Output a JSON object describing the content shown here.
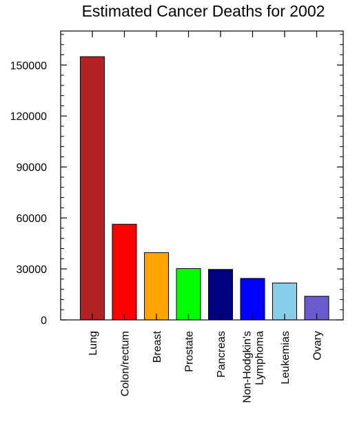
{
  "chart_data": {
    "type": "bar",
    "title": "Estimated Cancer Deaths for 2002",
    "xlabel": "",
    "ylabel": "",
    "ylim": [
      0,
      170000
    ],
    "yticks": [
      0,
      30000,
      60000,
      90000,
      120000,
      150000
    ],
    "ytick_labels": [
      "0",
      "30000",
      "60000",
      "90000",
      "120000",
      "150000"
    ],
    "categories": [
      [
        "Lung"
      ],
      [
        "Colon/rectum"
      ],
      [
        "Breast"
      ],
      [
        "Prostate"
      ],
      [
        "Pancreas"
      ],
      [
        "Non-Hodgkin's",
        "Lymphoma"
      ],
      [
        "Leukemias"
      ],
      [
        "Ovary"
      ]
    ],
    "values": [
      154900,
      56300,
      39600,
      30200,
      29700,
      24400,
      21700,
      13900
    ],
    "colors": [
      "#b22222",
      "#ff0000",
      "#ffa500",
      "#00ff00",
      "#000080",
      "#0000ff",
      "#87ceeb",
      "#6a5acd"
    ],
    "grid": false,
    "legend": "none"
  }
}
